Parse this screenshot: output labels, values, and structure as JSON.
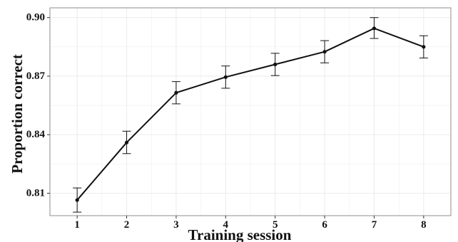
{
  "chart_data": {
    "type": "line",
    "title": "",
    "xlabel": "Training session",
    "ylabel": "Proportion correct",
    "x": [
      1,
      2,
      3,
      4,
      5,
      6,
      7,
      8
    ],
    "x_tick_labels": [
      "1",
      "2",
      "3",
      "4",
      "5",
      "6",
      "7",
      "8"
    ],
    "xlim": [
      0.45,
      8.55
    ],
    "ylim": [
      0.7985,
      0.905
    ],
    "y_ticks": [
      0.81,
      0.84,
      0.87,
      0.9
    ],
    "y_tick_labels": [
      "0.81",
      "0.84",
      "0.87",
      "0.90"
    ],
    "grid": true,
    "legend": "none",
    "series": [
      {
        "values": [
          0.8065,
          0.836,
          0.8615,
          0.8695,
          0.876,
          0.8825,
          0.8945,
          0.885
        ],
        "error_lower": [
          0.8003,
          0.8303,
          0.8558,
          0.8638,
          0.8703,
          0.8768,
          0.8893,
          0.8793
        ],
        "error_upper": [
          0.8127,
          0.8418,
          0.8672,
          0.8752,
          0.8817,
          0.8882,
          0.9,
          0.8907
        ],
        "color": "#111111"
      }
    ],
    "colors": {
      "line": "#111111",
      "grid": "#ebebeb",
      "frame": "#8c8c8c",
      "background": "#ffffff"
    }
  }
}
